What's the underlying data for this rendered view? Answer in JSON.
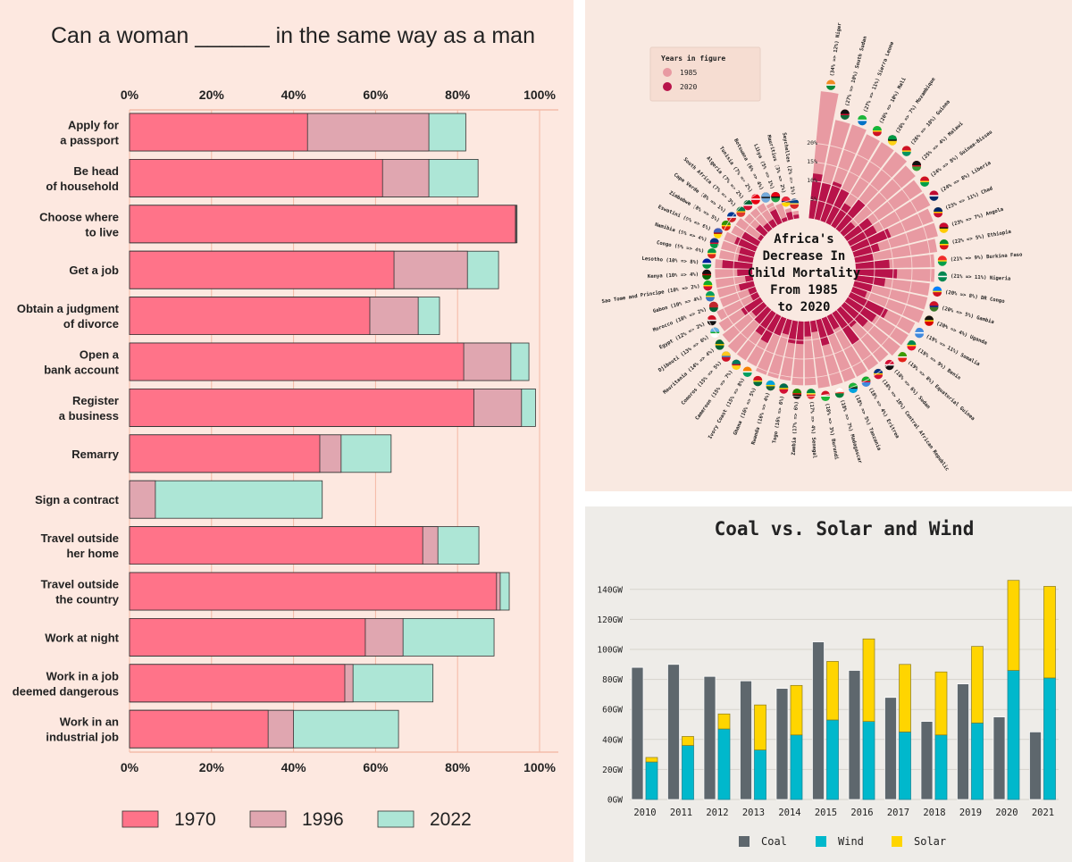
{
  "chart_data": [
    {
      "type": "bar",
      "orientation": "horizontal",
      "title": "Can a woman ______ in the same way as a man",
      "xlim": [
        0,
        100
      ],
      "x_ticks": [
        "0%",
        "20%",
        "40%",
        "60%",
        "80%",
        "100%"
      ],
      "grid": true,
      "legend_placement": "bottom",
      "categories": [
        [
          "Apply for",
          "a passport"
        ],
        [
          "Be head",
          "of household"
        ],
        [
          "Choose where",
          "to live"
        ],
        [
          "Get a job"
        ],
        [
          "Obtain a judgment",
          "of divorce"
        ],
        [
          "Open a",
          "bank account"
        ],
        [
          "Register",
          "a business"
        ],
        [
          "Remarry"
        ],
        [
          "Sign a contract"
        ],
        [
          "Travel outside",
          "her home"
        ],
        [
          "Travel outside",
          "the country"
        ],
        [
          "Work at night"
        ],
        [
          "Work in a job",
          "deemed dangerous"
        ],
        [
          "Work in an",
          "industrial job"
        ]
      ],
      "series": [
        {
          "name": "1970",
          "color": "#ff7389",
          "values": [
            43.4,
            61.7,
            94.1,
            64.5,
            58.6,
            81.5,
            84.0,
            46.4,
            0,
            71.5,
            89.5,
            57.5,
            52.5,
            33.8
          ]
        },
        {
          "name": "1996",
          "color": "#e0a6b0",
          "values": [
            73.0,
            73.0,
            94.3,
            82.4,
            70.4,
            93.0,
            95.6,
            51.6,
            6.3,
            75.2,
            90.4,
            66.7,
            54.5,
            40.0
          ]
        },
        {
          "name": "2022",
          "color": "#ade6d6",
          "values": [
            82.0,
            85.0,
            94.5,
            90.0,
            75.6,
            97.4,
            99.0,
            63.8,
            47.0,
            85.2,
            92.6,
            88.9,
            74.0,
            65.6
          ]
        }
      ]
    },
    {
      "type": "radial-bar",
      "title": [
        "Africa's",
        "Decrease In",
        "Child Mortality",
        "From 1985",
        "to 2020"
      ],
      "legend_title": "Years in figure",
      "legend_placement": "top-left",
      "r_ticks": [
        "5%",
        "10%",
        "15%",
        "20%"
      ],
      "series": [
        {
          "name": "1985",
          "color": "#e89aa2"
        },
        {
          "name": "2020",
          "color": "#b8134a"
        }
      ],
      "countries": [
        {
          "name": "Niger",
          "v1985": 34,
          "v2020": 12,
          "flag": [
            "#f08a24",
            "#ffffff",
            "#0a8a3a"
          ]
        },
        {
          "name": "South Sudan",
          "v1985": 27,
          "v2020": 10,
          "flag": [
            "#111111",
            "#c8102e",
            "#0f6a3a"
          ]
        },
        {
          "name": "Sierra Leone",
          "v1985": 27,
          "v2020": 11,
          "flag": [
            "#1eb53a",
            "#ffffff",
            "#0072c6"
          ]
        },
        {
          "name": "Mali",
          "v1985": 26,
          "v2020": 10,
          "flag": [
            "#14b53a",
            "#fcd116",
            "#ce1126"
          ]
        },
        {
          "name": "Mozambique",
          "v1985": 26,
          "v2020": 7,
          "flag": [
            "#009a44",
            "#111111",
            "#fcd116"
          ]
        },
        {
          "name": "Guinea",
          "v1985": 26,
          "v2020": 10,
          "flag": [
            "#ce1126",
            "#fcd116",
            "#009460"
          ]
        },
        {
          "name": "Malawi",
          "v1985": 25,
          "v2020": 4,
          "flag": [
            "#111111",
            "#ce1126",
            "#339e35"
          ]
        },
        {
          "name": "Guinea-Bissau",
          "v1985": 24,
          "v2020": 8,
          "flag": [
            "#ce1126",
            "#fcd116",
            "#009e49"
          ]
        },
        {
          "name": "Liberia",
          "v1985": 24,
          "v2020": 8,
          "flag": [
            "#bf0a30",
            "#ffffff",
            "#002868"
          ]
        },
        {
          "name": "Chad",
          "v1985": 23,
          "v2020": 11,
          "flag": [
            "#002664",
            "#fecb00",
            "#c60c30"
          ]
        },
        {
          "name": "Angola",
          "v1985": 23,
          "v2020": 7,
          "flag": [
            "#cc092f",
            "#111111",
            "#ffcb00"
          ]
        },
        {
          "name": "Ethiopia",
          "v1985": 22,
          "v2020": 5,
          "flag": [
            "#078930",
            "#fcdd09",
            "#da121a"
          ]
        },
        {
          "name": "Burkina Faso",
          "v1985": 21,
          "v2020": 9,
          "flag": [
            "#ef2b2d",
            "#fcd116",
            "#009e49"
          ]
        },
        {
          "name": "Nigeria",
          "v1985": 21,
          "v2020": 11,
          "flag": [
            "#008751",
            "#ffffff",
            "#008751"
          ]
        },
        {
          "name": "DR Congo",
          "v1985": 20,
          "v2020": 8,
          "flag": [
            "#007fff",
            "#f7d618",
            "#ce1021"
          ]
        },
        {
          "name": "Gambia",
          "v1985": 20,
          "v2020": 5,
          "flag": [
            "#ce1126",
            "#0c1c8c",
            "#3a7728"
          ]
        },
        {
          "name": "Uganda",
          "v1985": 20,
          "v2020": 4,
          "flag": [
            "#111111",
            "#fcdc04",
            "#d90000"
          ]
        },
        {
          "name": "Somalia",
          "v1985": 19,
          "v2020": 11,
          "flag": [
            "#4189dd",
            "#ffffff",
            "#4189dd"
          ]
        },
        {
          "name": "Benin",
          "v1985": 19,
          "v2020": 9,
          "flag": [
            "#008751",
            "#fcd116",
            "#e8112d"
          ]
        },
        {
          "name": "Equatorial Guinea",
          "v1985": 19,
          "v2020": 8,
          "flag": [
            "#3e9a00",
            "#ffffff",
            "#e32118"
          ]
        },
        {
          "name": "Sudan",
          "v1985": 18,
          "v2020": 6,
          "flag": [
            "#d21034",
            "#ffffff",
            "#111111"
          ]
        },
        {
          "name": "Central African Republic",
          "v1985": 18,
          "v2020": 10,
          "flag": [
            "#003082",
            "#ffce00",
            "#d21034"
          ]
        },
        {
          "name": "Eritrea",
          "v1985": 18,
          "v2020": 4,
          "flag": [
            "#12ad2b",
            "#ea0437",
            "#4189dd"
          ]
        },
        {
          "name": "Tanzania",
          "v1985": 18,
          "v2020": 5,
          "flag": [
            "#1eb53a",
            "#111111",
            "#00a3dd"
          ]
        },
        {
          "name": "Madagascar",
          "v1985": 18,
          "v2020": 7,
          "flag": [
            "#ffffff",
            "#fc3d32",
            "#007e3a"
          ]
        },
        {
          "name": "Burundi",
          "v1985": 18,
          "v2020": 3,
          "flag": [
            "#ce1126",
            "#ffffff",
            "#1eb53a"
          ]
        },
        {
          "name": "Senegal",
          "v1985": 17,
          "v2020": 4,
          "flag": [
            "#00853f",
            "#fdef42",
            "#e31b23"
          ]
        },
        {
          "name": "Zambia",
          "v1985": 17,
          "v2020": 6,
          "flag": [
            "#198a00",
            "#de2010",
            "#111111"
          ]
        },
        {
          "name": "Togo",
          "v1985": 16,
          "v2020": 6,
          "flag": [
            "#006a4e",
            "#ffce00",
            "#d21034"
          ]
        },
        {
          "name": "Rwanda",
          "v1985": 16,
          "v2020": 4,
          "flag": [
            "#00a1de",
            "#fad201",
            "#20603d"
          ]
        },
        {
          "name": "Ghana",
          "v1985": 16,
          "v2020": 5,
          "flag": [
            "#ce1126",
            "#fcd116",
            "#006b3f"
          ]
        },
        {
          "name": "Ivory Coast",
          "v1985": 15,
          "v2020": 8,
          "flag": [
            "#f77f00",
            "#ffffff",
            "#009e60"
          ]
        },
        {
          "name": "Cameroon",
          "v1985": 15,
          "v2020": 7,
          "flag": [
            "#007a5e",
            "#ce1126",
            "#fcd116"
          ]
        },
        {
          "name": "Comoros",
          "v1985": 15,
          "v2020": 5,
          "flag": [
            "#ffc61e",
            "#3a75c4",
            "#ce1126"
          ]
        },
        {
          "name": "Mauritania",
          "v1985": 14,
          "v2020": 4,
          "flag": [
            "#006233",
            "#ffc400",
            "#006233"
          ]
        },
        {
          "name": "Djibouti",
          "v1985": 13,
          "v2020": 6,
          "flag": [
            "#6ab2e7",
            "#12ad2b",
            "#ffffff"
          ]
        },
        {
          "name": "Egypt",
          "v1985": 12,
          "v2020": 2,
          "flag": [
            "#ce1126",
            "#ffffff",
            "#111111"
          ]
        },
        {
          "name": "Morocco",
          "v1985": 10,
          "v2020": 2,
          "flag": [
            "#c1272d",
            "#c1272d",
            "#006233"
          ]
        },
        {
          "name": "Gabon",
          "v1985": 10,
          "v2020": 4,
          "flag": [
            "#009e60",
            "#fcd116",
            "#3a75c4"
          ]
        },
        {
          "name": "Sao Tome and Principe",
          "v1985": 10,
          "v2020": 2,
          "flag": [
            "#12ad2b",
            "#ffce00",
            "#d21034"
          ]
        },
        {
          "name": "Kenya",
          "v1985": 10,
          "v2020": 4,
          "flag": [
            "#111111",
            "#bb0000",
            "#006600"
          ]
        },
        {
          "name": "Lesotho",
          "v1985": 10,
          "v2020": 8,
          "flag": [
            "#00209f",
            "#ffffff",
            "#009543"
          ]
        },
        {
          "name": "Congo",
          "v1985": 9,
          "v2020": 4,
          "flag": [
            "#009543",
            "#fbde4a",
            "#dc241f"
          ]
        },
        {
          "name": "Namibia",
          "v1985": 9,
          "v2020": 4,
          "flag": [
            "#003580",
            "#d21034",
            "#009543"
          ]
        },
        {
          "name": "Eswatini",
          "v1985": 9,
          "v2020": 6,
          "flag": [
            "#3e5eb9",
            "#b10c0c",
            "#ffd900"
          ]
        },
        {
          "name": "Zimbabwe",
          "v1985": 8,
          "v2020": 5,
          "flag": [
            "#319208",
            "#ffd200",
            "#de2010"
          ]
        },
        {
          "name": "Cape Verde",
          "v1985": 8,
          "v2020": 1,
          "flag": [
            "#003893",
            "#ffffff",
            "#cf2027"
          ]
        },
        {
          "name": "South Africa",
          "v1985": 7,
          "v2020": 3,
          "flag": [
            "#007a4d",
            "#ffb612",
            "#de3831"
          ]
        },
        {
          "name": "Algeria",
          "v1985": 7,
          "v2020": 2,
          "flag": [
            "#006233",
            "#ffffff",
            "#d21034"
          ]
        },
        {
          "name": "Tunisia",
          "v1985": 7,
          "v2020": 2,
          "flag": [
            "#e70013",
            "#ffffff",
            "#e70013"
          ]
        },
        {
          "name": "Botswana",
          "v1985": 6,
          "v2020": 4,
          "flag": [
            "#75aadb",
            "#111111",
            "#75aadb"
          ]
        },
        {
          "name": "Libya",
          "v1985": 5,
          "v2020": 1,
          "flag": [
            "#e70013",
            "#111111",
            "#239e46"
          ]
        },
        {
          "name": "Mauritius",
          "v1985": 3,
          "v2020": 2,
          "flag": [
            "#ea2839",
            "#1a206d",
            "#ffd500"
          ]
        },
        {
          "name": "Seychelles",
          "v1985": 2,
          "v2020": 1,
          "flag": [
            "#003f87",
            "#fcd856",
            "#d62828"
          ]
        }
      ]
    },
    {
      "type": "bar",
      "title": "Coal vs. Solar and Wind",
      "ylim": [
        0,
        150
      ],
      "y_ticks": [
        "0GW",
        "20GW",
        "40GW",
        "60GW",
        "80GW",
        "100GW",
        "120GW",
        "140GW"
      ],
      "grid": true,
      "legend_placement": "bottom",
      "categories": [
        "2010",
        "2011",
        "2012",
        "2013",
        "2014",
        "2015",
        "2016",
        "2017",
        "2018",
        "2019",
        "2020",
        "2021"
      ],
      "series": [
        {
          "name": "Coal",
          "color": "#5e676d",
          "stack": "coal",
          "values": [
            88,
            90,
            82,
            79,
            74,
            105,
            86,
            68,
            52,
            77,
            55,
            45
          ]
        },
        {
          "name": "Wind",
          "color": "#00b8cc",
          "stack": "renewables",
          "values": [
            25,
            36,
            47,
            33,
            43,
            53,
            52,
            45,
            43,
            51,
            86,
            81
          ]
        },
        {
          "name": "Solar",
          "color": "#ffd500",
          "stack": "renewables",
          "values": [
            3,
            6,
            10,
            30,
            33,
            39,
            55,
            45,
            42,
            51,
            60,
            61
          ]
        }
      ]
    }
  ]
}
